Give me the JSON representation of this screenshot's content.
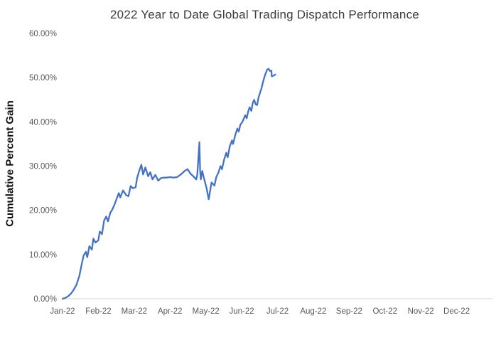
{
  "chart_data": {
    "type": "line",
    "title": "2022 Year to Date Global Trading Dispatch Performance",
    "ylabel": "Cumulative Percent Gain",
    "xlabel": "",
    "legend": "none",
    "grid": false,
    "line_color": "#4472C4",
    "axis_line_color": "#d6d6d6",
    "tick_label_color": "#595959",
    "ylim": [
      0,
      60
    ],
    "xlim_months": [
      0,
      12
    ],
    "x_tick_labels": [
      "Jan-22",
      "Feb-22",
      "Mar-22",
      "Apr-22",
      "May-22",
      "Jun-22",
      "Jul-22",
      "Aug-22",
      "Sep-22",
      "Oct-22",
      "Nov-22",
      "Dec-22"
    ],
    "y_ticks": [
      {
        "label": "0.00%",
        "value": 0
      },
      {
        "label": "10.00%",
        "value": 10
      },
      {
        "label": "20.00%",
        "value": 20
      },
      {
        "label": "30.00%",
        "value": 30
      },
      {
        "label": "40.00%",
        "value": 40
      },
      {
        "label": "50.00%",
        "value": 50
      },
      {
        "label": "60.00%",
        "value": 60
      }
    ],
    "series": [
      {
        "name": "Cumulative Percent Gain",
        "color": "#4472C4",
        "x_unit": "months-since-Jan-2022",
        "y_unit": "percent",
        "points": [
          [
            0.0,
            0.0
          ],
          [
            0.08,
            0.2
          ],
          [
            0.16,
            0.6
          ],
          [
            0.24,
            1.2
          ],
          [
            0.31,
            2.0
          ],
          [
            0.39,
            3.2
          ],
          [
            0.47,
            5.2
          ],
          [
            0.53,
            7.6
          ],
          [
            0.59,
            9.8
          ],
          [
            0.65,
            10.6
          ],
          [
            0.69,
            9.4
          ],
          [
            0.75,
            11.9
          ],
          [
            0.82,
            11.1
          ],
          [
            0.86,
            13.6
          ],
          [
            0.92,
            12.7
          ],
          [
            1.0,
            13.2
          ],
          [
            1.04,
            15.2
          ],
          [
            1.1,
            14.6
          ],
          [
            1.16,
            17.7
          ],
          [
            1.22,
            18.6
          ],
          [
            1.27,
            17.5
          ],
          [
            1.33,
            19.4
          ],
          [
            1.39,
            20.2
          ],
          [
            1.45,
            21.3
          ],
          [
            1.51,
            22.6
          ],
          [
            1.57,
            23.9
          ],
          [
            1.61,
            22.9
          ],
          [
            1.69,
            24.5
          ],
          [
            1.78,
            23.4
          ],
          [
            1.84,
            23.2
          ],
          [
            1.9,
            25.5
          ],
          [
            1.96,
            25.0
          ],
          [
            2.04,
            25.2
          ],
          [
            2.08,
            27.3
          ],
          [
            2.14,
            28.9
          ],
          [
            2.2,
            30.3
          ],
          [
            2.25,
            28.1
          ],
          [
            2.31,
            29.7
          ],
          [
            2.39,
            27.7
          ],
          [
            2.45,
            28.6
          ],
          [
            2.51,
            27.0
          ],
          [
            2.59,
            28.0
          ],
          [
            2.67,
            26.7
          ],
          [
            2.75,
            27.3
          ],
          [
            2.82,
            27.4
          ],
          [
            2.9,
            27.4
          ],
          [
            3.0,
            27.5
          ],
          [
            3.1,
            27.4
          ],
          [
            3.2,
            27.5
          ],
          [
            3.33,
            28.3
          ],
          [
            3.41,
            28.9
          ],
          [
            3.49,
            29.3
          ],
          [
            3.57,
            28.3
          ],
          [
            3.65,
            27.7
          ],
          [
            3.73,
            27.0
          ],
          [
            3.76,
            28.0
          ],
          [
            3.82,
            35.4
          ],
          [
            3.84,
            29.0
          ],
          [
            3.86,
            27.0
          ],
          [
            3.9,
            28.9
          ],
          [
            3.94,
            27.5
          ],
          [
            4.02,
            25.0
          ],
          [
            4.08,
            22.5
          ],
          [
            4.16,
            26.3
          ],
          [
            4.24,
            25.6
          ],
          [
            4.29,
            27.5
          ],
          [
            4.35,
            28.5
          ],
          [
            4.41,
            30.0
          ],
          [
            4.45,
            29.3
          ],
          [
            4.51,
            31.5
          ],
          [
            4.57,
            33.0
          ],
          [
            4.61,
            32.0
          ],
          [
            4.67,
            34.5
          ],
          [
            4.73,
            35.8
          ],
          [
            4.76,
            35.0
          ],
          [
            4.82,
            37.0
          ],
          [
            4.88,
            38.5
          ],
          [
            4.92,
            37.8
          ],
          [
            4.96,
            39.3
          ],
          [
            5.02,
            40.0
          ],
          [
            5.1,
            41.5
          ],
          [
            5.14,
            40.8
          ],
          [
            5.18,
            42.3
          ],
          [
            5.22,
            43.3
          ],
          [
            5.27,
            42.5
          ],
          [
            5.31,
            44.3
          ],
          [
            5.35,
            45.0
          ],
          [
            5.39,
            44.0
          ],
          [
            5.43,
            43.8
          ],
          [
            5.47,
            45.5
          ],
          [
            5.51,
            46.5
          ],
          [
            5.55,
            47.5
          ],
          [
            5.59,
            48.8
          ],
          [
            5.63,
            50.0
          ],
          [
            5.67,
            51.0
          ],
          [
            5.71,
            51.8
          ],
          [
            5.75,
            52.0
          ],
          [
            5.79,
            51.5
          ],
          [
            5.83,
            51.6
          ],
          [
            5.84,
            50.3
          ],
          [
            5.88,
            50.4
          ],
          [
            5.94,
            50.7
          ]
        ]
      }
    ]
  }
}
